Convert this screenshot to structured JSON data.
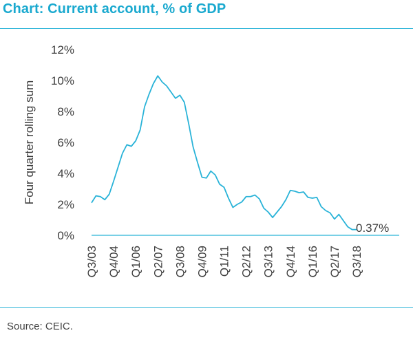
{
  "title": "Chart: Current account, % of GDP",
  "source": "Source: CEIC.",
  "colors": {
    "accent": "#1aa9cf",
    "line": "#29b3d8",
    "text": "#3d3d3d"
  },
  "chart_data": {
    "type": "line",
    "ylabel": "Four quarter rolling sum",
    "xlabel": "",
    "ylim": [
      0,
      12
    ],
    "y_ticks": [
      "0%",
      "2%",
      "4%",
      "6%",
      "8%",
      "10%",
      "12%"
    ],
    "x_ticks": [
      "Q3/03",
      "Q4/04",
      "Q1/06",
      "Q2/07",
      "Q3/08",
      "Q4/09",
      "Q1/11",
      "Q2/12",
      "Q3/13",
      "Q4/14",
      "Q1/16",
      "Q2/17",
      "Q3/18"
    ],
    "grid": false,
    "annotation": "0.37%",
    "series": [
      {
        "x": [
          "Q3/03",
          "Q4/03",
          "Q1/04",
          "Q2/04",
          "Q3/04",
          "Q4/04",
          "Q1/05",
          "Q2/05",
          "Q3/05",
          "Q4/05",
          "Q1/06",
          "Q2/06",
          "Q3/06",
          "Q4/06",
          "Q1/07",
          "Q2/07",
          "Q3/07",
          "Q4/07",
          "Q1/08",
          "Q2/08",
          "Q3/08",
          "Q4/08",
          "Q1/09",
          "Q2/09",
          "Q3/09",
          "Q4/09",
          "Q1/10",
          "Q2/10",
          "Q3/10",
          "Q4/10",
          "Q1/11",
          "Q2/11",
          "Q3/11",
          "Q4/11",
          "Q1/12",
          "Q2/12",
          "Q3/12",
          "Q4/12",
          "Q1/13",
          "Q2/13",
          "Q3/13",
          "Q4/13",
          "Q1/14",
          "Q2/14",
          "Q3/14",
          "Q4/14",
          "Q1/15",
          "Q2/15",
          "Q3/15",
          "Q4/15",
          "Q1/16",
          "Q2/16",
          "Q3/16",
          "Q4/16",
          "Q1/17",
          "Q2/17",
          "Q3/17",
          "Q4/17",
          "Q1/18",
          "Q2/18",
          "Q3/18"
        ],
        "values": [
          2.1,
          2.55,
          2.5,
          2.3,
          2.65,
          3.5,
          4.4,
          5.3,
          5.85,
          5.75,
          6.1,
          6.8,
          8.3,
          9.1,
          9.8,
          10.3,
          9.9,
          9.65,
          9.25,
          8.85,
          9.05,
          8.6,
          7.2,
          5.7,
          4.7,
          3.75,
          3.7,
          4.15,
          3.9,
          3.3,
          3.1,
          2.4,
          1.8,
          2.0,
          2.15,
          2.5,
          2.5,
          2.6,
          2.35,
          1.75,
          1.5,
          1.15,
          1.5,
          1.85,
          2.3,
          2.9,
          2.85,
          2.75,
          2.8,
          2.45,
          2.4,
          2.45,
          1.85,
          1.6,
          1.45,
          1.05,
          1.35,
          0.95,
          0.55,
          0.37,
          0.37
        ]
      }
    ]
  }
}
